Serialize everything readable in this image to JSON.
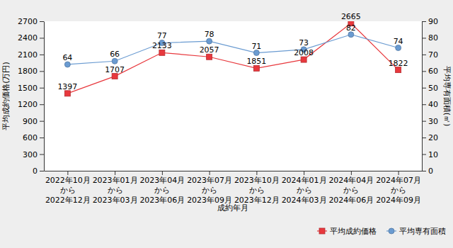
{
  "chart_data": {
    "type": "line",
    "x_label": "成約年月",
    "y_label": "平均成約価格(万円)",
    "y2_label": "平均専有面積(㎡)",
    "categories": [
      "2022年10月\nから\n2022年12月",
      "2023年01月\nから\n2023年03月",
      "2023年04月\nから\n2023年06月",
      "2023年07月\nから\n2023年09月",
      "2023年10月\nから\n2023年12月",
      "2024年01月\nから\n2024年03月",
      "2024年04月\nから\n2024年06月",
      "2024年07月\nから\n2024年09月"
    ],
    "series": [
      {
        "name": "平均成約価格",
        "color": "#e8383d",
        "marker": "square",
        "values": [
          1397,
          1707,
          2133,
          2057,
          1851,
          2008,
          2665,
          1822
        ]
      },
      {
        "name": "平均専有面積",
        "color": "#6a9bd1",
        "marker": "circle",
        "axis": "y2",
        "values": [
          64,
          66,
          77,
          78,
          71,
          73,
          82,
          74
        ]
      }
    ],
    "ylim": [
      0,
      2700
    ],
    "yticks": [
      0,
      300,
      600,
      900,
      1200,
      1500,
      1800,
      2100,
      2400,
      2700
    ],
    "y2lim": [
      0,
      90
    ],
    "y2ticks": [
      0,
      10,
      20,
      30,
      40,
      50,
      60,
      70,
      80,
      90
    ],
    "data_labels": true,
    "legend": "bottom-right",
    "grid": false
  }
}
